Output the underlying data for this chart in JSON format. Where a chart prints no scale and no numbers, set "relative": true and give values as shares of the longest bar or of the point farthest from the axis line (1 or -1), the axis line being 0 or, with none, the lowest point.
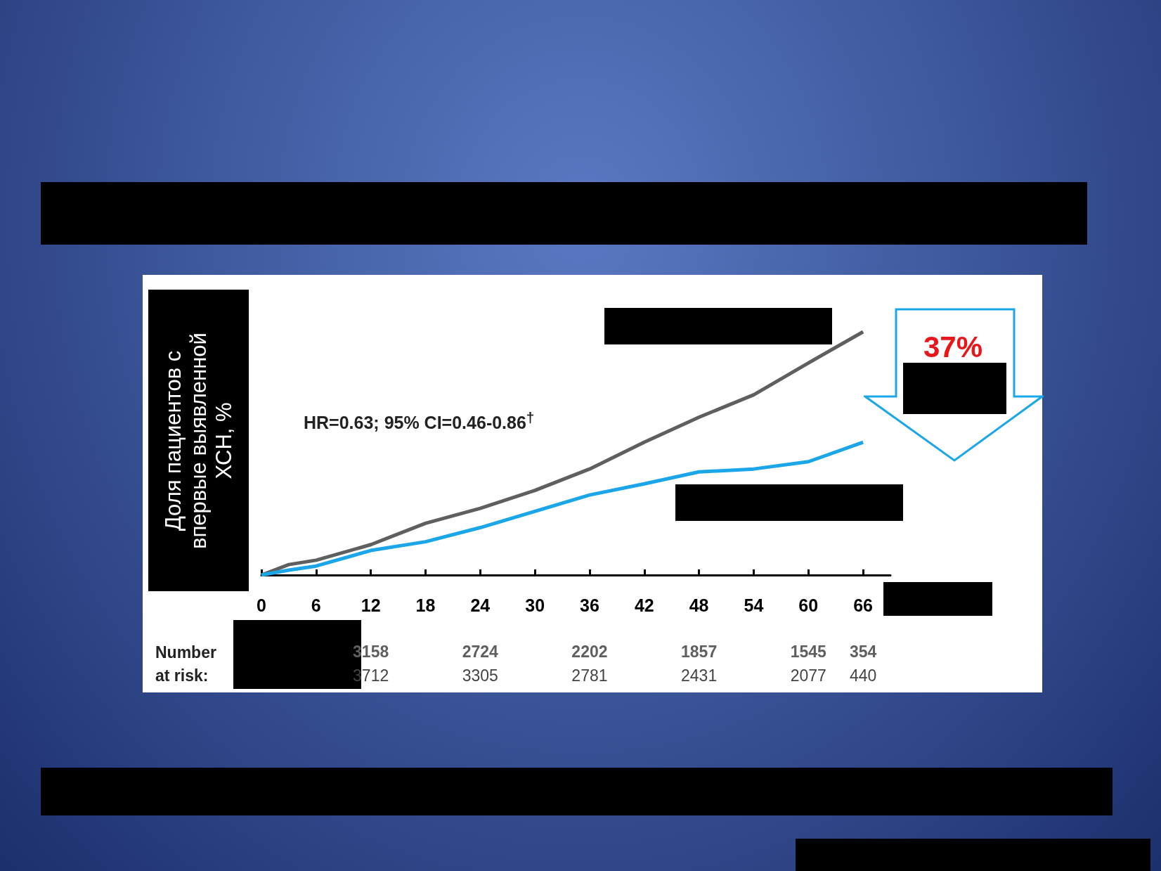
{
  "chart_data": {
    "type": "line",
    "relative": true,
    "ylabel": "Доля пациентов с впервые выявленной ХСН, %",
    "x": [
      0,
      3,
      6,
      12,
      18,
      24,
      30,
      36,
      42,
      48,
      54,
      60,
      66
    ],
    "xlim": [
      0,
      69
    ],
    "xticks": [
      0,
      6,
      12,
      18,
      24,
      30,
      36,
      42,
      48,
      54,
      60,
      66
    ],
    "series": [
      {
        "color": "#5f5f5f",
        "values": [
          0,
          0.043,
          0.061,
          0.125,
          0.213,
          0.274,
          0.348,
          0.436,
          0.546,
          0.649,
          0.741,
          0.872,
          1
        ]
      },
      {
        "color": "#1aa6e8",
        "values": [
          0,
          0.02,
          0.037,
          0.101,
          0.137,
          0.195,
          0.262,
          0.329,
          0.375,
          0.424,
          0.436,
          0.466,
          0.546
        ]
      }
    ],
    "annotations": [
      "HR=0.63; 95% CI=0.46-0.86$^{†}$",
      "37%",
      "Number at risk:",
      "3158",
      "2724",
      "2202",
      "1857",
      "1545",
      "354",
      "3712",
      "3305",
      "2781",
      "2431",
      "2077",
      "440"
    ],
    "grid": false,
    "marker": "none",
    "line_style": "solid"
  }
}
